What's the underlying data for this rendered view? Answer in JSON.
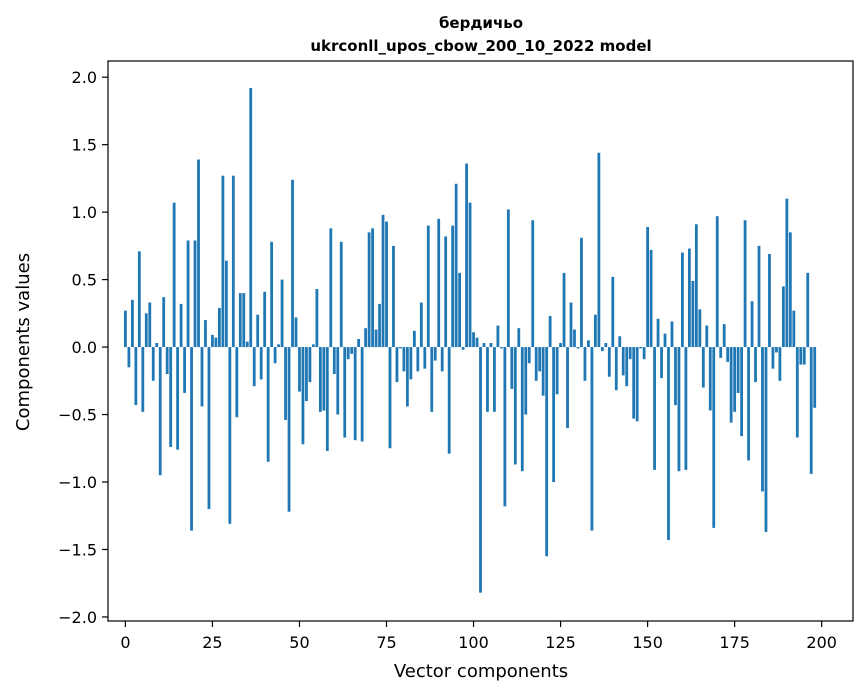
{
  "chart_data": {
    "type": "bar",
    "title_line1": "бердичьо",
    "title_line2": "ukrconll_upos_cbow_200_10_2022 model",
    "xlabel": "Vector components",
    "ylabel": "Components values",
    "xlim": [
      -5,
      209
    ],
    "ylim": [
      -2.03,
      2.12
    ],
    "xticks": [
      0,
      25,
      50,
      75,
      100,
      125,
      150,
      175,
      200
    ],
    "yticks": [
      -2.0,
      -1.5,
      -1.0,
      -0.5,
      0.0,
      0.5,
      1.0,
      1.5,
      2.0
    ],
    "ytick_labels": [
      "−2.0",
      "−1.5",
      "−1.0",
      "−0.5",
      "0.0",
      "0.5",
      "1.0",
      "1.5",
      "2.0"
    ],
    "bar_color": "#1f77b4",
    "values": [
      0.27,
      -0.15,
      0.35,
      -0.43,
      0.71,
      -0.48,
      0.25,
      0.33,
      -0.25,
      0.03,
      -0.95,
      0.37,
      -0.2,
      -0.74,
      1.07,
      -0.76,
      0.32,
      -0.34,
      0.79,
      -1.36,
      0.79,
      1.39,
      -0.44,
      0.2,
      -1.2,
      0.09,
      0.07,
      0.29,
      1.27,
      0.64,
      -1.31,
      1.27,
      -0.52,
      0.4,
      0.4,
      0.04,
      1.92,
      -0.29,
      0.24,
      -0.24,
      0.41,
      -0.85,
      0.78,
      -0.12,
      0.02,
      0.5,
      -0.54,
      -1.22,
      1.24,
      0.22,
      -0.33,
      -0.72,
      -0.4,
      -0.26,
      0.02,
      0.43,
      -0.48,
      -0.47,
      -0.77,
      0.88,
      -0.2,
      -0.5,
      0.78,
      -0.67,
      -0.09,
      -0.05,
      -0.69,
      0.06,
      -0.7,
      0.14,
      0.85,
      0.88,
      0.13,
      0.32,
      0.98,
      0.93,
      -0.75,
      0.75,
      -0.26,
      -0.01,
      -0.18,
      -0.44,
      -0.24,
      0.12,
      -0.18,
      0.33,
      -0.16,
      0.9,
      -0.48,
      -0.1,
      0.95,
      -0.18,
      0.82,
      -0.79,
      0.9,
      1.21,
      0.55,
      -0.02,
      1.36,
      1.07,
      0.11,
      0.07,
      -1.82,
      0.03,
      -0.48,
      0.03,
      -0.48,
      0.16,
      -0.01,
      -1.18,
      1.02,
      -0.31,
      -0.87,
      0.14,
      -0.92,
      -0.5,
      -0.12,
      0.94,
      -0.25,
      -0.18,
      -0.36,
      -1.55,
      0.23,
      -1.0,
      -0.35,
      0.03,
      0.55,
      -0.6,
      0.33,
      0.13,
      -0.01,
      0.81,
      -0.25,
      0.05,
      -1.36,
      0.24,
      1.44,
      -0.03,
      0.03,
      -0.22,
      0.52,
      -0.32,
      0.08,
      -0.21,
      -0.29,
      -0.09,
      -0.53,
      -0.55,
      -0.01,
      -0.09,
      0.89,
      0.72,
      -0.91,
      0.21,
      -0.23,
      0.1,
      -1.43,
      0.19,
      -0.43,
      -0.92,
      0.7,
      -0.91,
      0.73,
      0.49,
      0.91,
      0.28,
      -0.3,
      0.16,
      -0.47,
      -1.34,
      0.97,
      -0.08,
      0.17,
      -0.11,
      -0.56,
      -0.48,
      -0.34,
      -0.66,
      0.94,
      -0.84,
      0.34,
      -0.26,
      0.75,
      -1.07,
      -1.37,
      0.69,
      -0.16,
      -0.04,
      -0.25,
      0.45,
      1.1,
      0.85,
      0.27,
      -0.67,
      -0.13,
      -0.13,
      0.55,
      -0.94,
      -0.45
    ]
  }
}
